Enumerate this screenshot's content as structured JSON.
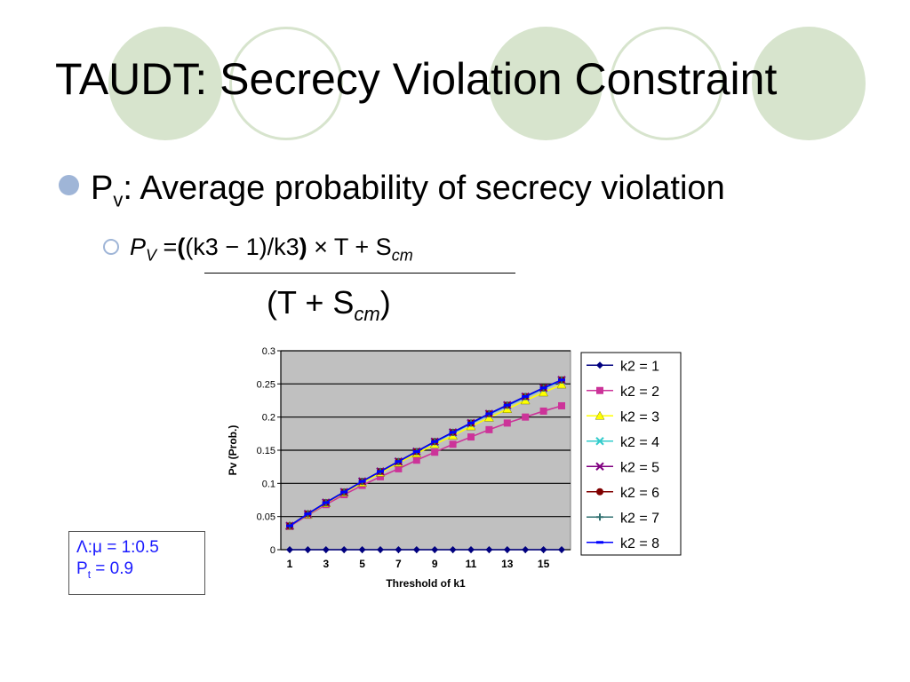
{
  "slide": {
    "title": "TAUDT: Secrecy Violation Constraint",
    "bullet": {
      "symbol": "P",
      "subscript": "v",
      "text": ": Average probability of secrecy violation"
    },
    "formula": {
      "lhs_symbol": "P",
      "lhs_subscript": "V",
      "lhs_eq": " =",
      "paren_open": "(",
      "inner": "(k3 − 1)/k3",
      "paren_close": ")",
      "times_part": " × T + S",
      "times_subscript": "cm",
      "denom_left": "(T + S",
      "denom_subscript": "cm",
      "denom_right": ")"
    },
    "params": {
      "line1": "Λ:μ = 1:0.5",
      "line2_symbol": "P",
      "line2_subscript": "t",
      "line2_value": " = 0.9"
    },
    "colors": {
      "deco_circle": "#d7e4cd",
      "bullet": "#9fb5d7",
      "param_text": "#1a1aff"
    }
  },
  "chart_data": {
    "type": "line",
    "xlabel": "Threshold of k1",
    "ylabel": "Pv (Prob.)",
    "x": [
      1,
      2,
      3,
      4,
      5,
      6,
      7,
      8,
      9,
      10,
      11,
      12,
      13,
      14,
      15,
      16
    ],
    "x_tick_labels": [
      "1",
      "3",
      "5",
      "7",
      "9",
      "11",
      "13",
      "15"
    ],
    "y_tick_labels": [
      "0",
      "0.05",
      "0.1",
      "0.15",
      "0.2",
      "0.25",
      "0.3"
    ],
    "ylim": [
      0,
      0.3
    ],
    "grid": "horizontal",
    "plot_background": "#c0c0c0",
    "legend_position": "right",
    "series": [
      {
        "name": "k2 = 1",
        "color": "#000080",
        "marker": "diamond",
        "values": [
          0,
          0,
          0,
          0,
          0,
          0,
          0,
          0,
          0,
          0,
          0,
          0,
          0,
          0,
          0,
          0
        ]
      },
      {
        "name": "k2 = 2",
        "color": "#cc3399",
        "marker": "square",
        "values": [
          0.035,
          0.052,
          0.068,
          0.083,
          0.097,
          0.11,
          0.122,
          0.135,
          0.147,
          0.159,
          0.17,
          0.181,
          0.191,
          0.2,
          0.209,
          0.217
        ]
      },
      {
        "name": "k2 = 3",
        "color": "#ffff00",
        "marker": "triangle",
        "values": [
          0.036,
          0.053,
          0.07,
          0.086,
          0.101,
          0.116,
          0.131,
          0.145,
          0.159,
          0.172,
          0.186,
          0.199,
          0.212,
          0.225,
          0.237,
          0.249
        ]
      },
      {
        "name": "k2 = 4",
        "color": "#33cccc",
        "marker": "x",
        "values": [
          0.036,
          0.054,
          0.071,
          0.087,
          0.103,
          0.118,
          0.133,
          0.148,
          0.162,
          0.176,
          0.19,
          0.204,
          0.217,
          0.23,
          0.243,
          0.255
        ]
      },
      {
        "name": "k2 = 5",
        "color": "#800080",
        "marker": "x",
        "values": [
          0.036,
          0.054,
          0.071,
          0.087,
          0.103,
          0.118,
          0.133,
          0.148,
          0.163,
          0.177,
          0.191,
          0.205,
          0.218,
          0.231,
          0.244,
          0.256
        ]
      },
      {
        "name": "k2 = 6",
        "color": "#800000",
        "marker": "circle",
        "values": [
          0.036,
          0.054,
          0.071,
          0.087,
          0.103,
          0.118,
          0.133,
          0.148,
          0.163,
          0.177,
          0.191,
          0.205,
          0.218,
          0.231,
          0.244,
          0.256
        ]
      },
      {
        "name": "k2 = 7",
        "color": "#2f6f6f",
        "marker": "plus",
        "values": [
          0.036,
          0.054,
          0.071,
          0.087,
          0.103,
          0.118,
          0.133,
          0.148,
          0.163,
          0.177,
          0.191,
          0.205,
          0.218,
          0.231,
          0.244,
          0.256
        ]
      },
      {
        "name": "k2 = 8",
        "color": "#0000ff",
        "marker": "dash",
        "values": [
          0.036,
          0.054,
          0.071,
          0.087,
          0.103,
          0.118,
          0.133,
          0.148,
          0.163,
          0.177,
          0.191,
          0.205,
          0.218,
          0.231,
          0.244,
          0.256
        ]
      }
    ]
  }
}
